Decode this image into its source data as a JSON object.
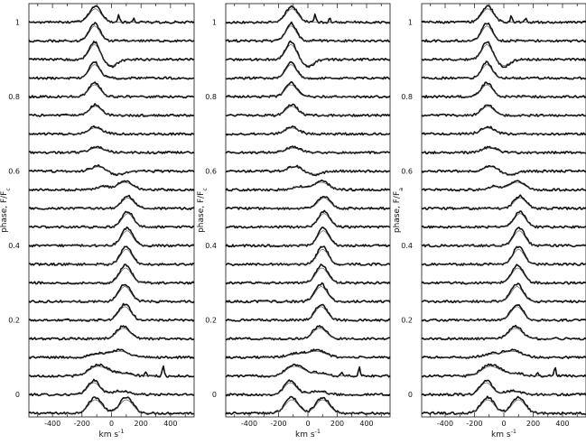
{
  "chart_data": [
    {
      "type": "line",
      "panel": "left",
      "ylabel": "phase, F/F",
      "ylabel_sub": "c",
      "xlabel": "km s",
      "xlabel_sup": "-1",
      "xlim": [
        -560,
        560
      ],
      "ylim": [
        -0.06,
        1.05
      ],
      "x_ticks": [
        -400,
        -200,
        0,
        200,
        400
      ],
      "y_ticks": [
        0,
        0.2,
        0.4,
        0.6,
        0.8,
        1
      ],
      "x_tick_labels": [
        "-400",
        "-200",
        "0",
        "200",
        "400"
      ],
      "y_tick_labels": [
        "0",
        "0.2",
        "0.4",
        "0.6",
        "0.8",
        "1"
      ],
      "phase_offsets": [
        -0.05,
        0.0,
        0.05,
        0.1,
        0.15,
        0.2,
        0.25,
        0.3,
        0.35,
        0.4,
        0.45,
        0.5,
        0.55,
        0.6,
        0.65,
        0.7,
        0.75,
        0.8,
        0.85,
        0.9,
        0.95,
        1.0
      ],
      "profiles": [
        {
          "phase": -0.05,
          "components": [
            [
              -110,
              45,
              0.045
            ],
            [
              100,
              45,
              0.045
            ]
          ],
          "spikes": []
        },
        {
          "phase": 0.0,
          "components": [
            [
              -120,
              40,
              0.04
            ],
            [
              60,
              60,
              0.01
            ]
          ],
          "spikes": []
        },
        {
          "phase": 0.05,
          "components": [
            [
              -110,
              50,
              0.025
            ],
            [
              -40,
              50,
              0.015
            ],
            [
              80,
              50,
              0.008
            ]
          ],
          "spikes": [
            [
              230,
              0.012
            ],
            [
              350,
              0.025
            ]
          ]
        },
        {
          "phase": 0.1,
          "components": [
            [
              -80,
              60,
              0.01
            ],
            [
              60,
              60,
              0.02
            ]
          ],
          "spikes": []
        },
        {
          "phase": 0.15,
          "components": [
            [
              80,
              45,
              0.035
            ]
          ],
          "spikes": []
        },
        {
          "phase": 0.2,
          "components": [
            [
              90,
              40,
              0.045
            ]
          ],
          "spikes": []
        },
        {
          "phase": 0.25,
          "components": [
            [
              90,
              40,
              0.05
            ]
          ],
          "spikes": []
        },
        {
          "phase": 0.3,
          "components": [
            [
              95,
              40,
              0.05
            ]
          ],
          "spikes": []
        },
        {
          "phase": 0.35,
          "components": [
            [
              100,
              38,
              0.05
            ]
          ],
          "spikes": []
        },
        {
          "phase": 0.4,
          "components": [
            [
              105,
              38,
              0.05
            ]
          ],
          "spikes": []
        },
        {
          "phase": 0.45,
          "components": [
            [
              110,
              38,
              0.045
            ]
          ],
          "spikes": []
        },
        {
          "phase": 0.5,
          "components": [
            [
              110,
              40,
              0.035
            ]
          ],
          "spikes": []
        },
        {
          "phase": 0.55,
          "components": [
            [
              90,
              50,
              0.025
            ],
            [
              -60,
              40,
              0.01
            ]
          ],
          "spikes": []
        },
        {
          "phase": 0.6,
          "components": [
            [
              -90,
              45,
              0.015
            ],
            [
              40,
              50,
              -0.01
            ]
          ],
          "spikes": []
        },
        {
          "phase": 0.65,
          "components": [
            [
              -100,
              50,
              0.015
            ]
          ],
          "spikes": []
        },
        {
          "phase": 0.7,
          "components": [
            [
              -110,
              45,
              0.02
            ]
          ],
          "spikes": []
        },
        {
          "phase": 0.75,
          "components": [
            [
              -110,
              40,
              0.03
            ]
          ],
          "spikes": []
        },
        {
          "phase": 0.8,
          "components": [
            [
              -115,
              38,
              0.04
            ]
          ],
          "spikes": []
        },
        {
          "phase": 0.85,
          "components": [
            [
              -115,
              35,
              0.045
            ]
          ],
          "spikes": []
        },
        {
          "phase": 0.9,
          "components": [
            [
              -115,
              35,
              0.05
            ],
            [
              0,
              40,
              -0.02
            ]
          ],
          "spikes": []
        },
        {
          "phase": 0.95,
          "components": [
            [
              -115,
              35,
              0.05
            ]
          ],
          "spikes": []
        },
        {
          "phase": 1.0,
          "components": [
            [
              -110,
              40,
              0.045
            ]
          ],
          "spikes": [
            [
              50,
              0.02
            ],
            [
              150,
              0.01
            ]
          ]
        }
      ]
    },
    {
      "type": "line",
      "panel": "middle",
      "ylabel": "phase, F/F",
      "ylabel_sub": "c",
      "xlabel": "km s",
      "xlabel_sup": "-1",
      "xlim": [
        -560,
        560
      ],
      "ylim": [
        -0.06,
        1.05
      ],
      "x_ticks": [
        -400,
        -200,
        0,
        200,
        400
      ],
      "y_ticks": [
        0,
        0.2,
        0.4,
        0.6,
        0.8,
        1
      ],
      "x_tick_labels": [
        "-400",
        "-200",
        "0",
        "200",
        "400"
      ],
      "y_tick_labels": [
        "0",
        "0.2",
        "0.4",
        "0.6",
        "0.8",
        "1"
      ],
      "phase_offsets": [
        -0.05,
        0.0,
        0.05,
        0.1,
        0.15,
        0.2,
        0.25,
        0.3,
        0.35,
        0.4,
        0.45,
        0.5,
        0.55,
        0.6,
        0.65,
        0.7,
        0.75,
        0.8,
        0.85,
        0.9,
        0.95,
        1.0
      ],
      "profiles": [
        {
          "phase": -0.05,
          "components": [
            [
              -110,
              45,
              0.045
            ],
            [
              100,
              45,
              0.045
            ]
          ],
          "spikes": []
        },
        {
          "phase": 0.0,
          "components": [
            [
              -120,
              40,
              0.04
            ],
            [
              60,
              60,
              0.01
            ]
          ],
          "spikes": []
        },
        {
          "phase": 0.05,
          "components": [
            [
              -110,
              50,
              0.025
            ],
            [
              -40,
              50,
              0.015
            ],
            [
              80,
              50,
              0.008
            ]
          ],
          "spikes": [
            [
              230,
              0.012
            ],
            [
              350,
              0.025
            ]
          ]
        },
        {
          "phase": 0.1,
          "components": [
            [
              -80,
              60,
              0.01
            ],
            [
              60,
              60,
              0.02
            ]
          ],
          "spikes": []
        },
        {
          "phase": 0.15,
          "components": [
            [
              80,
              45,
              0.035
            ]
          ],
          "spikes": []
        },
        {
          "phase": 0.2,
          "components": [
            [
              90,
              40,
              0.045
            ]
          ],
          "spikes": []
        },
        {
          "phase": 0.25,
          "components": [
            [
              90,
              40,
              0.05
            ]
          ],
          "spikes": []
        },
        {
          "phase": 0.3,
          "components": [
            [
              95,
              40,
              0.05
            ]
          ],
          "spikes": []
        },
        {
          "phase": 0.35,
          "components": [
            [
              100,
              38,
              0.05
            ]
          ],
          "spikes": []
        },
        {
          "phase": 0.4,
          "components": [
            [
              105,
              38,
              0.05
            ]
          ],
          "spikes": []
        },
        {
          "phase": 0.45,
          "components": [
            [
              110,
              38,
              0.045
            ]
          ],
          "spikes": []
        },
        {
          "phase": 0.5,
          "components": [
            [
              110,
              40,
              0.035
            ]
          ],
          "spikes": []
        },
        {
          "phase": 0.55,
          "components": [
            [
              90,
              50,
              0.025
            ],
            [
              -60,
              40,
              0.01
            ]
          ],
          "spikes": []
        },
        {
          "phase": 0.6,
          "components": [
            [
              -90,
              45,
              0.015
            ],
            [
              40,
              50,
              -0.01
            ]
          ],
          "spikes": []
        },
        {
          "phase": 0.65,
          "components": [
            [
              -100,
              50,
              0.015
            ]
          ],
          "spikes": []
        },
        {
          "phase": 0.7,
          "components": [
            [
              -110,
              45,
              0.02
            ]
          ],
          "spikes": []
        },
        {
          "phase": 0.75,
          "components": [
            [
              -110,
              40,
              0.03
            ]
          ],
          "spikes": []
        },
        {
          "phase": 0.8,
          "components": [
            [
              -115,
              38,
              0.04
            ]
          ],
          "spikes": []
        },
        {
          "phase": 0.85,
          "components": [
            [
              -115,
              35,
              0.045
            ]
          ],
          "spikes": []
        },
        {
          "phase": 0.9,
          "components": [
            [
              -115,
              35,
              0.05
            ],
            [
              0,
              40,
              -0.02
            ]
          ],
          "spikes": []
        },
        {
          "phase": 0.95,
          "components": [
            [
              -115,
              35,
              0.05
            ]
          ],
          "spikes": []
        },
        {
          "phase": 1.0,
          "components": [
            [
              -110,
              40,
              0.045
            ]
          ],
          "spikes": [
            [
              50,
              0.02
            ],
            [
              150,
              0.01
            ]
          ]
        }
      ]
    },
    {
      "type": "line",
      "panel": "right",
      "ylabel": "phase, F/F",
      "ylabel_sub": "a",
      "xlabel": "km s",
      "xlabel_sup": "-1",
      "xlim": [
        -560,
        560
      ],
      "ylim": [
        -0.06,
        1.05
      ],
      "x_ticks": [
        -400,
        -200,
        0,
        200,
        400
      ],
      "y_ticks": [
        0,
        0.2,
        0.4,
        0.6,
        0.8,
        1
      ],
      "x_tick_labels": [
        "-400",
        "-200",
        "0",
        "200",
        "400"
      ],
      "y_tick_labels": [
        "0",
        "0.2",
        "0.4",
        "0.6",
        "0.8",
        "1"
      ],
      "phase_offsets": [
        -0.05,
        0.0,
        0.05,
        0.1,
        0.15,
        0.2,
        0.25,
        0.3,
        0.35,
        0.4,
        0.45,
        0.5,
        0.55,
        0.6,
        0.65,
        0.7,
        0.75,
        0.8,
        0.85,
        0.9,
        0.95,
        1.0
      ],
      "profiles": [
        {
          "phase": -0.05,
          "components": [
            [
              -110,
              45,
              0.045
            ],
            [
              100,
              45,
              0.045
            ]
          ],
          "spikes": []
        },
        {
          "phase": 0.0,
          "components": [
            [
              -120,
              40,
              0.04
            ],
            [
              60,
              60,
              0.01
            ]
          ],
          "spikes": []
        },
        {
          "phase": 0.05,
          "components": [
            [
              -110,
              50,
              0.025
            ],
            [
              -40,
              50,
              0.015
            ],
            [
              80,
              50,
              0.008
            ]
          ],
          "spikes": [
            [
              230,
              0.012
            ],
            [
              350,
              0.025
            ]
          ]
        },
        {
          "phase": 0.1,
          "components": [
            [
              -80,
              60,
              0.01
            ],
            [
              60,
              60,
              0.02
            ]
          ],
          "spikes": []
        },
        {
          "phase": 0.15,
          "components": [
            [
              80,
              45,
              0.035
            ]
          ],
          "spikes": []
        },
        {
          "phase": 0.2,
          "components": [
            [
              90,
              40,
              0.045
            ]
          ],
          "spikes": []
        },
        {
          "phase": 0.25,
          "components": [
            [
              90,
              40,
              0.05
            ]
          ],
          "spikes": []
        },
        {
          "phase": 0.3,
          "components": [
            [
              95,
              40,
              0.05
            ]
          ],
          "spikes": []
        },
        {
          "phase": 0.35,
          "components": [
            [
              100,
              38,
              0.05
            ]
          ],
          "spikes": []
        },
        {
          "phase": 0.4,
          "components": [
            [
              105,
              38,
              0.05
            ]
          ],
          "spikes": []
        },
        {
          "phase": 0.45,
          "components": [
            [
              110,
              38,
              0.045
            ]
          ],
          "spikes": []
        },
        {
          "phase": 0.5,
          "components": [
            [
              110,
              40,
              0.035
            ]
          ],
          "spikes": []
        },
        {
          "phase": 0.55,
          "components": [
            [
              90,
              50,
              0.025
            ],
            [
              -60,
              40,
              0.01
            ]
          ],
          "spikes": []
        },
        {
          "phase": 0.6,
          "components": [
            [
              -90,
              45,
              0.015
            ],
            [
              40,
              50,
              -0.01
            ]
          ],
          "spikes": []
        },
        {
          "phase": 0.65,
          "components": [
            [
              -100,
              50,
              0.015
            ]
          ],
          "spikes": []
        },
        {
          "phase": 0.7,
          "components": [
            [
              -110,
              45,
              0.02
            ]
          ],
          "spikes": []
        },
        {
          "phase": 0.75,
          "components": [
            [
              -110,
              40,
              0.03
            ]
          ],
          "spikes": []
        },
        {
          "phase": 0.8,
          "components": [
            [
              -115,
              38,
              0.04
            ]
          ],
          "spikes": []
        },
        {
          "phase": 0.85,
          "components": [
            [
              -115,
              35,
              0.045
            ]
          ],
          "spikes": []
        },
        {
          "phase": 0.9,
          "components": [
            [
              -115,
              35,
              0.05
            ],
            [
              0,
              40,
              -0.02
            ]
          ],
          "spikes": []
        },
        {
          "phase": 0.95,
          "components": [
            [
              -115,
              35,
              0.05
            ]
          ],
          "spikes": []
        },
        {
          "phase": 1.0,
          "components": [
            [
              -110,
              40,
              0.045
            ]
          ],
          "spikes": [
            [
              50,
              0.02
            ],
            [
              150,
              0.01
            ]
          ]
        }
      ]
    }
  ]
}
